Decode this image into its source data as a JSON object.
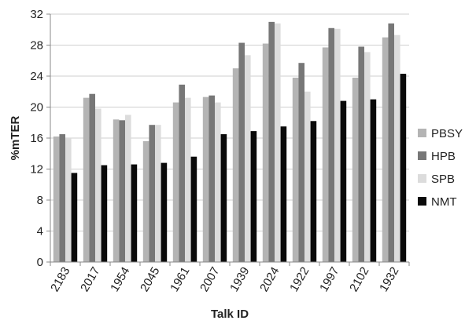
{
  "chart_data": {
    "type": "bar",
    "title": "",
    "xlabel": "Talk ID",
    "ylabel": "%mTER",
    "ylim": [
      0,
      32
    ],
    "yticks": [
      0,
      4,
      8,
      12,
      16,
      20,
      24,
      28,
      32
    ],
    "grid": "horizontal",
    "legend_position": "right",
    "categories": [
      "2183",
      "2017",
      "1954",
      "2045",
      "1961",
      "2007",
      "1939",
      "2024",
      "1922",
      "1997",
      "2102",
      "1932"
    ],
    "series": [
      {
        "name": "PBSY",
        "color": "#b4b4b4",
        "values": [
          16.2,
          21.2,
          18.4,
          15.6,
          20.6,
          21.3,
          25.0,
          28.2,
          23.8,
          27.7,
          23.8,
          29.0
        ]
      },
      {
        "name": "HPB",
        "color": "#777777",
        "values": [
          16.5,
          21.7,
          18.3,
          17.7,
          22.9,
          21.5,
          28.3,
          31.0,
          25.7,
          30.2,
          27.8,
          30.8
        ]
      },
      {
        "name": "SPB",
        "color": "#dcdcdc",
        "values": [
          16.0,
          19.8,
          19.0,
          17.7,
          21.2,
          20.6,
          26.7,
          30.8,
          22.0,
          30.1,
          27.1,
          29.3
        ]
      },
      {
        "name": "NMT",
        "color": "#0a0a0a",
        "values": [
          11.5,
          12.5,
          12.6,
          12.8,
          13.6,
          16.5,
          16.9,
          17.5,
          18.2,
          20.8,
          21.0,
          24.3
        ]
      }
    ]
  }
}
